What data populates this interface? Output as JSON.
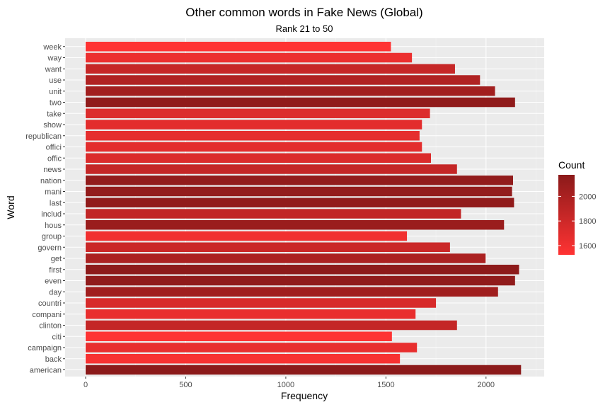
{
  "chart_data": {
    "type": "bar",
    "orientation": "horizontal",
    "title": "Other common words in Fake News (Global)",
    "subtitle": "Rank 21 to 50",
    "xlabel": "Frequency",
    "ylabel": "Word",
    "xlim": [
      0,
      2300
    ],
    "x_ticks": [
      0,
      500,
      1000,
      1500,
      2000
    ],
    "categories": [
      "american",
      "back",
      "campaign",
      "citi",
      "clinton",
      "compani",
      "countri",
      "day",
      "even",
      "first",
      "get",
      "govern",
      "group",
      "hous",
      "includ",
      "last",
      "mani",
      "nation",
      "news",
      "offic",
      "offici",
      "republican",
      "show",
      "take",
      "two",
      "unit",
      "use",
      "want",
      "way",
      "week"
    ],
    "values": [
      2175,
      1570,
      1655,
      1530,
      1855,
      1648,
      1750,
      2060,
      2145,
      2165,
      1998,
      1820,
      1605,
      2090,
      1875,
      2140,
      2130,
      2135,
      1855,
      1725,
      1680,
      1668,
      1680,
      1720,
      2145,
      2045,
      1970,
      1845,
      1630,
      1525
    ],
    "grid": true,
    "legend": {
      "title": "Count",
      "position": "right",
      "ticks": [
        1600,
        1800,
        2000
      ],
      "range": [
        1525,
        2175
      ],
      "color_low": "#ff3333",
      "color_high": "#8b1a1a"
    }
  }
}
